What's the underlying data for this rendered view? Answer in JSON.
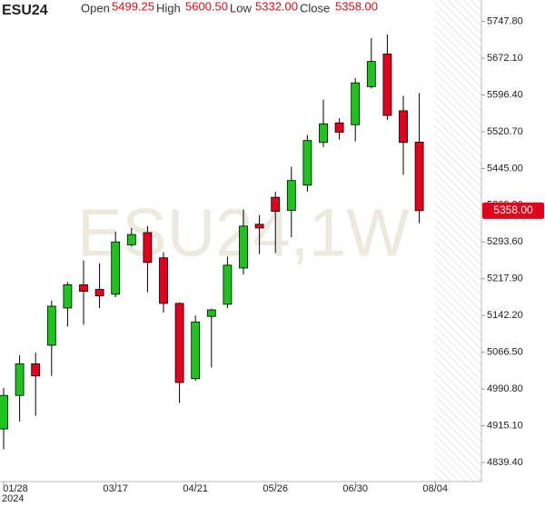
{
  "chart_data": {
    "type": "candlestick",
    "title": "ESU24",
    "watermark": "ESU24,1W",
    "legend": [
      {
        "label": "Open",
        "value": "5499.25"
      },
      {
        "label": "High",
        "value": "5600.50"
      },
      {
        "label": "Low",
        "value": "5332.00"
      },
      {
        "label": "Close",
        "value": "5358.00"
      }
    ],
    "last_price_label": "5358.00",
    "categories": [
      "01/28",
      null,
      null,
      null,
      null,
      null,
      null,
      "03/17",
      null,
      null,
      null,
      null,
      "04/21",
      null,
      null,
      null,
      null,
      "05/26",
      null,
      null,
      null,
      null,
      "06/30",
      null,
      null,
      null,
      null,
      "08/04"
    ],
    "year_label": "2024",
    "open": [
      4908.4,
      4977.4,
      5042.5,
      5080.8,
      5157.5,
      5205.4,
      5195.8,
      5186.0,
      5287.8,
      5312.8,
      5261.0,
      5167.0,
      5011.9,
      5140.3,
      5165.2,
      5239.9,
      5330.0,
      5385.6,
      5358.7,
      5410.5,
      5498.6,
      5538.9,
      5535.1,
      5613.6,
      5680.7,
      5563.8,
      5499.25,
      null
    ],
    "high": [
      4992.7,
      5059.8,
      5065.5,
      5172.8,
      5211.2,
      5255.3,
      5249.5,
      5314.7,
      5322.3,
      5326.2,
      5272.5,
      5169.0,
      5142.2,
      5156.0,
      5263.0,
      5360.6,
      5349.0,
      5397.1,
      5448.8,
      5514.0,
      5586.8,
      5548.5,
      5630.9,
      5713.3,
      5721.0,
      5594.5,
      5600.5,
      null
    ],
    "low": [
      4866.2,
      4923.7,
      4935.2,
      5017.6,
      5119.2,
      5123.0,
      5157.5,
      5180.0,
      5284.0,
      5190.0,
      5148.0,
      4962.0,
      5008.0,
      5034.9,
      5157.5,
      5226.5,
      5268.7,
      5270.6,
      5303.2,
      5397.1,
      5489.0,
      5504.4,
      5500.6,
      5609.8,
      5544.7,
      5431.6,
      5332.0,
      null
    ],
    "close": [
      4977.4,
      5042.5,
      5017.6,
      5161.3,
      5205.4,
      5192.0,
      5182.4,
      5293.6,
      5308.9,
      5251.4,
      5167.0,
      5004.0,
      5128.8,
      5153.7,
      5245.7,
      5326.2,
      5322.3,
      5356.8,
      5420.1,
      5502.5,
      5537.0,
      5519.7,
      5621.3,
      5665.4,
      5554.2,
      5498.6,
      5358.0,
      null
    ],
    "up_color": "#1ec31e",
    "down_color": "#e3001b",
    "ylim": [
      4800.0,
      5792.0
    ],
    "yticks": [
      {
        "value": 4839.4,
        "label": "4839.40"
      },
      {
        "value": 4915.1,
        "label": "4915.10"
      },
      {
        "value": 4990.8,
        "label": "4990.80"
      },
      {
        "value": 5066.5,
        "label": "5066.50"
      },
      {
        "value": 5142.2,
        "label": "5142.20"
      },
      {
        "value": 5217.9,
        "label": "5217.90"
      },
      {
        "value": 5293.6,
        "label": "5293.60"
      },
      {
        "value": 5369.3,
        "label": "5369.30"
      },
      {
        "value": 5445.0,
        "label": "5445.00"
      },
      {
        "value": 5520.7,
        "label": "5520.70"
      },
      {
        "value": 5596.4,
        "label": "5596.40"
      },
      {
        "value": 5672.1,
        "label": "5672.10"
      },
      {
        "value": 5747.8,
        "label": "5747.80"
      }
    ]
  }
}
